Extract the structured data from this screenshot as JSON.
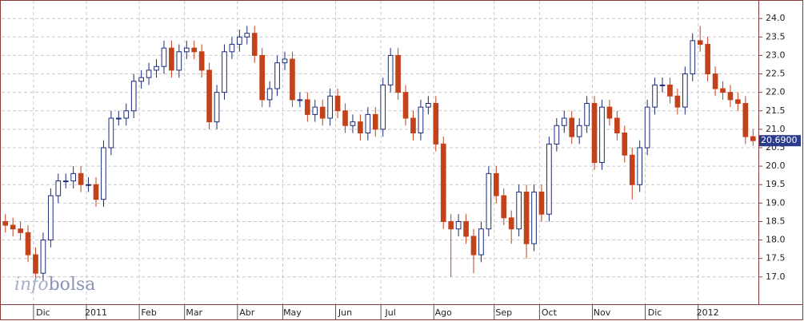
{
  "chart_data": {
    "type": "candlestick",
    "categories": [
      null,
      null,
      null,
      null,
      null,
      "Dic",
      null,
      null,
      null,
      null,
      null,
      null,
      "2011",
      null,
      null,
      null,
      null,
      null,
      null,
      "Feb",
      null,
      null,
      null,
      null,
      null,
      "Mar",
      null,
      null,
      null,
      null,
      null,
      null,
      "Abr",
      null,
      null,
      null,
      null,
      null,
      "May",
      null,
      null,
      null,
      null,
      null,
      null,
      "Jun",
      null,
      null,
      null,
      null,
      null,
      "Jul",
      null,
      null,
      null,
      null,
      null,
      null,
      "Ago",
      null,
      null,
      null,
      null,
      null,
      null,
      null,
      "Sep",
      null,
      null,
      null,
      null,
      null,
      "Oct",
      null,
      null,
      null,
      null,
      null,
      null,
      "Nov",
      null,
      null,
      null,
      null,
      null,
      null,
      "Dic",
      null,
      null,
      null,
      null,
      null,
      null,
      "2012",
      null,
      null,
      null,
      null,
      null,
      null
    ],
    "open": [
      18.5,
      18.4,
      18.3,
      18.2,
      17.6,
      17.1,
      18.0,
      19.2,
      19.6,
      19.6,
      19.8,
      19.5,
      19.5,
      19.1,
      20.5,
      21.3,
      21.3,
      21.5,
      22.3,
      22.4,
      22.6,
      22.7,
      23.2,
      22.6,
      23.1,
      23.2,
      23.1,
      22.6,
      21.2,
      22.0,
      23.1,
      23.3,
      23.5,
      23.6,
      23.0,
      21.8,
      22.1,
      22.8,
      22.9,
      21.8,
      21.8,
      21.4,
      21.6,
      21.3,
      21.9,
      21.5,
      21.1,
      21.2,
      20.9,
      21.4,
      21.0,
      22.2,
      23.0,
      22.0,
      21.3,
      20.9,
      21.6,
      21.7,
      20.6,
      18.5,
      18.3,
      18.5,
      18.1,
      17.6,
      18.3,
      19.8,
      19.2,
      18.6,
      18.3,
      19.3,
      17.9,
      19.3,
      18.7,
      20.6,
      21.1,
      21.3,
      20.8,
      21.1,
      21.7,
      20.1,
      21.6,
      21.3,
      20.9,
      20.3,
      19.5,
      20.5,
      21.6,
      22.2,
      22.2,
      21.9,
      21.6,
      22.5,
      23.4,
      23.3,
      22.5,
      22.1,
      22.0,
      21.8,
      21.7,
      20.8
    ],
    "high": [
      18.7,
      18.6,
      18.5,
      18.4,
      17.8,
      18.2,
      19.4,
      19.8,
      19.8,
      20.0,
      20.0,
      19.7,
      19.7,
      20.7,
      21.5,
      21.5,
      21.7,
      22.5,
      22.6,
      22.8,
      22.9,
      23.4,
      23.4,
      23.3,
      23.4,
      23.4,
      23.3,
      22.8,
      22.2,
      23.3,
      23.5,
      23.7,
      23.8,
      23.8,
      23.2,
      22.3,
      23.0,
      23.1,
      23.1,
      22.0,
      22.0,
      21.8,
      21.8,
      22.1,
      22.1,
      21.7,
      21.4,
      21.4,
      21.6,
      21.6,
      22.4,
      23.2,
      23.2,
      22.2,
      21.5,
      21.8,
      21.9,
      21.9,
      20.8,
      18.7,
      18.7,
      18.7,
      18.3,
      18.5,
      20.0,
      20.0,
      19.4,
      18.8,
      19.5,
      19.5,
      19.5,
      19.5,
      20.8,
      21.3,
      21.5,
      21.5,
      21.3,
      21.9,
      21.9,
      21.8,
      21.8,
      21.5,
      21.1,
      20.5,
      20.7,
      21.8,
      22.4,
      22.4,
      22.4,
      22.1,
      22.7,
      23.6,
      23.8,
      23.5,
      22.7,
      22.3,
      22.2,
      22.0,
      21.9,
      21.0
    ],
    "low": [
      18.2,
      18.1,
      18.0,
      17.4,
      16.9,
      16.9,
      17.8,
      19.0,
      19.4,
      19.4,
      19.3,
      19.3,
      18.9,
      18.9,
      20.3,
      21.1,
      21.1,
      21.3,
      22.1,
      22.2,
      22.4,
      22.5,
      22.4,
      22.4,
      22.9,
      22.9,
      22.4,
      21.0,
      21.0,
      21.8,
      22.9,
      23.1,
      23.3,
      22.8,
      21.6,
      21.6,
      21.9,
      22.6,
      21.6,
      21.6,
      21.2,
      21.2,
      21.1,
      21.1,
      21.3,
      20.9,
      20.9,
      20.7,
      20.7,
      20.8,
      20.8,
      22.0,
      21.8,
      21.1,
      20.7,
      20.7,
      21.4,
      20.4,
      18.3,
      17.0,
      18.1,
      17.9,
      17.1,
      17.4,
      18.1,
      19.0,
      18.4,
      17.9,
      18.1,
      17.5,
      17.7,
      18.5,
      18.5,
      20.4,
      20.9,
      20.6,
      20.6,
      20.9,
      19.9,
      19.9,
      21.1,
      20.7,
      20.1,
      19.1,
      19.3,
      20.3,
      21.4,
      22.0,
      21.7,
      21.4,
      21.4,
      22.3,
      23.1,
      22.3,
      21.9,
      21.8,
      21.6,
      21.5,
      20.6,
      20.55
    ],
    "close": [
      18.4,
      18.3,
      18.2,
      17.6,
      17.1,
      18.0,
      19.2,
      19.6,
      19.6,
      19.8,
      19.5,
      19.5,
      19.1,
      20.5,
      21.3,
      21.3,
      21.5,
      22.3,
      22.4,
      22.6,
      22.7,
      23.2,
      22.6,
      23.1,
      23.2,
      23.1,
      22.6,
      21.2,
      22.0,
      23.1,
      23.3,
      23.5,
      23.6,
      23.0,
      21.8,
      22.1,
      22.8,
      22.9,
      21.8,
      21.8,
      21.4,
      21.6,
      21.3,
      21.9,
      21.5,
      21.1,
      21.2,
      20.9,
      21.4,
      21.0,
      22.2,
      23.0,
      22.0,
      21.3,
      20.9,
      21.6,
      21.7,
      20.6,
      18.5,
      18.3,
      18.5,
      18.1,
      17.6,
      18.3,
      19.8,
      19.2,
      18.6,
      18.3,
      19.3,
      17.9,
      19.3,
      18.7,
      20.6,
      21.1,
      21.3,
      20.8,
      21.1,
      21.7,
      20.1,
      21.6,
      21.3,
      20.9,
      20.3,
      19.5,
      20.5,
      21.6,
      22.2,
      22.2,
      21.9,
      21.6,
      22.5,
      23.4,
      23.3,
      22.5,
      22.1,
      22.0,
      21.8,
      21.7,
      20.8,
      20.69
    ],
    "up_color": "#1c2a7a",
    "down_color": "#c2421b",
    "last_value": {
      "value": 20.69,
      "label": "20.6900"
    },
    "ylim": [
      16.26,
      24.48
    ],
    "yticks": [
      {
        "value": 17,
        "label": "17.0"
      },
      17.5,
      {
        "value": 18,
        "label": "18.0"
      },
      18.5,
      {
        "value": 19,
        "label": "19.0"
      },
      19.5,
      {
        "value": 20,
        "label": "20.0"
      },
      20.5,
      {
        "value": 21,
        "label": "21.0"
      },
      21.5,
      {
        "value": 22,
        "label": "22.0"
      },
      22.5,
      {
        "value": 23,
        "label": "23.0"
      },
      23.5,
      {
        "value": 24,
        "label": "24.0"
      }
    ],
    "grid": true,
    "watermark": {
      "prefix": "info",
      "suffix": "bolsa"
    }
  }
}
